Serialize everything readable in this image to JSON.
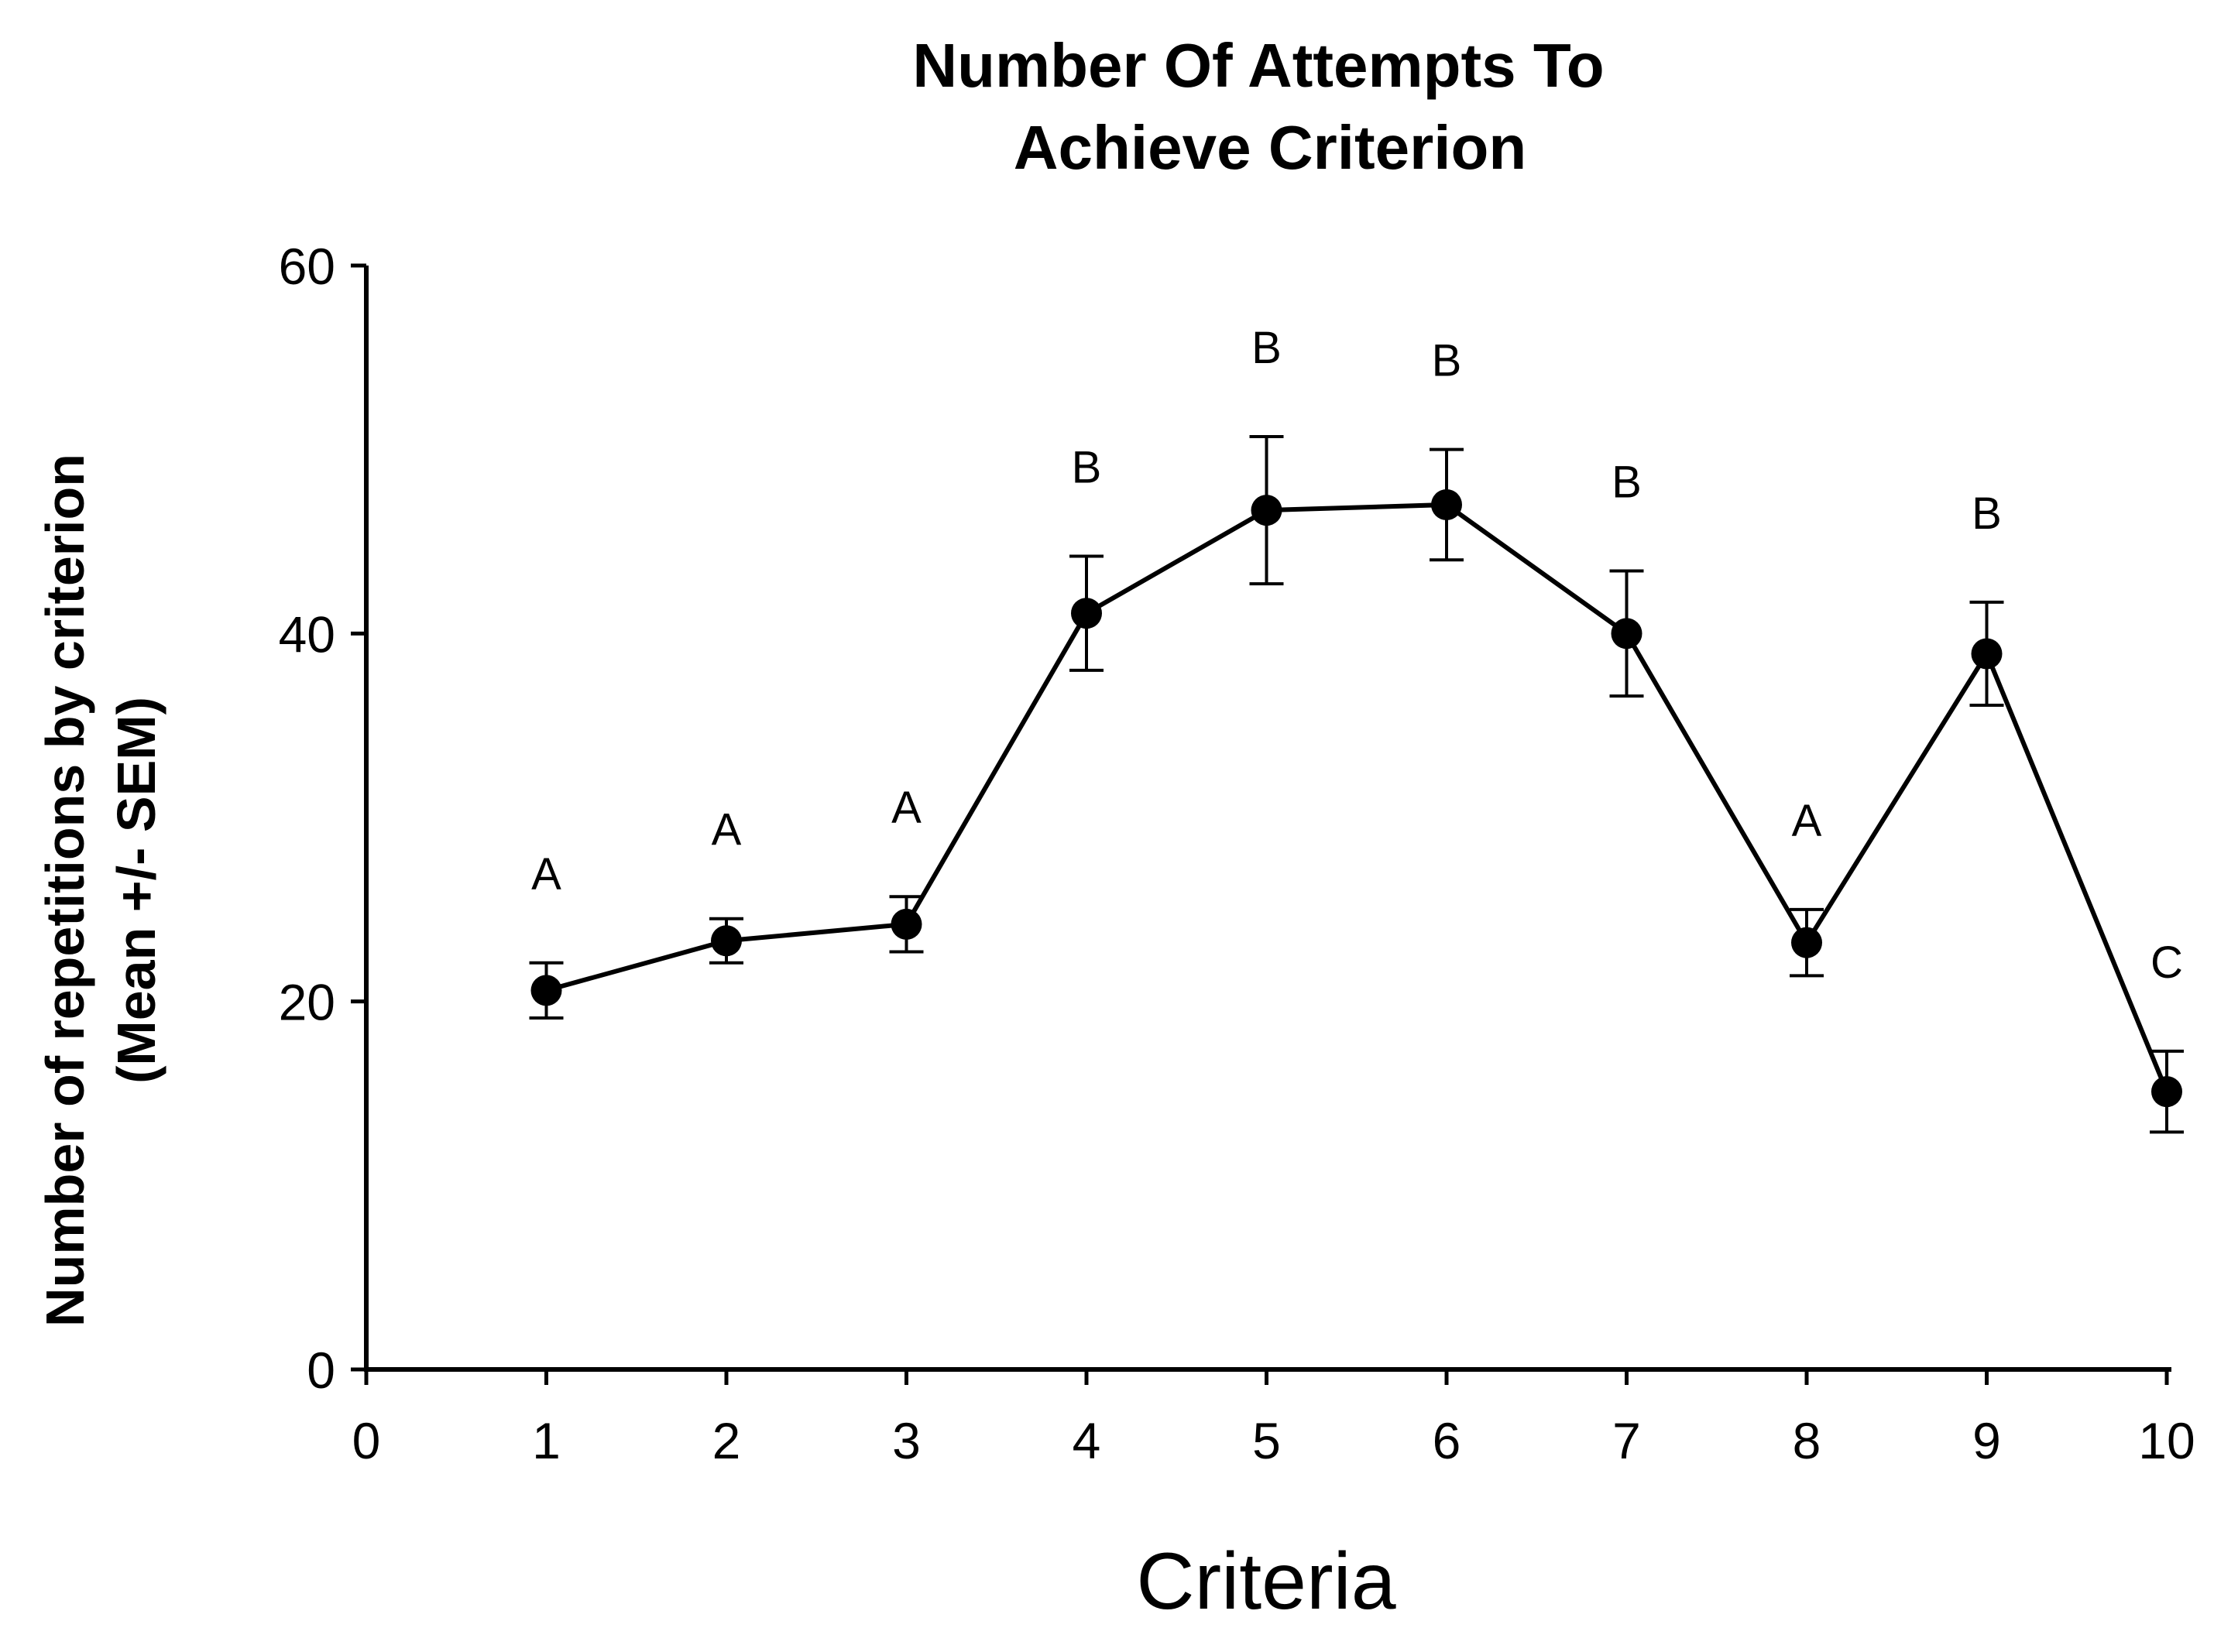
{
  "chart_data": {
    "type": "line",
    "title": [
      "Number Of Attempts To",
      "Achieve Criterion"
    ],
    "xlabel": "Criteria",
    "ylabel": [
      "Number of repetitions by criterion",
      "(Mean +/- SEM)"
    ],
    "xlim": [
      0,
      10
    ],
    "ylim": [
      0,
      60
    ],
    "xticks": [
      0,
      1,
      2,
      3,
      4,
      5,
      6,
      7,
      8,
      9,
      10
    ],
    "yticks": [
      0,
      20,
      40,
      60
    ],
    "grid": false,
    "series": [
      {
        "name": "Mean",
        "x": [
          1,
          2,
          3,
          4,
          5,
          6,
          7,
          8,
          9,
          10
        ],
        "values": [
          20.6,
          23.3,
          24.2,
          41.1,
          46.7,
          47.0,
          40.0,
          23.2,
          38.9,
          15.1
        ],
        "error": [
          1.5,
          1.2,
          1.5,
          3.1,
          4.0,
          3.0,
          3.4,
          1.8,
          2.8,
          2.2
        ],
        "labels": [
          "A",
          "A",
          "A",
          "B",
          "B",
          "B",
          "B",
          "A",
          "B",
          "C"
        ]
      }
    ],
    "color": "#000000"
  }
}
